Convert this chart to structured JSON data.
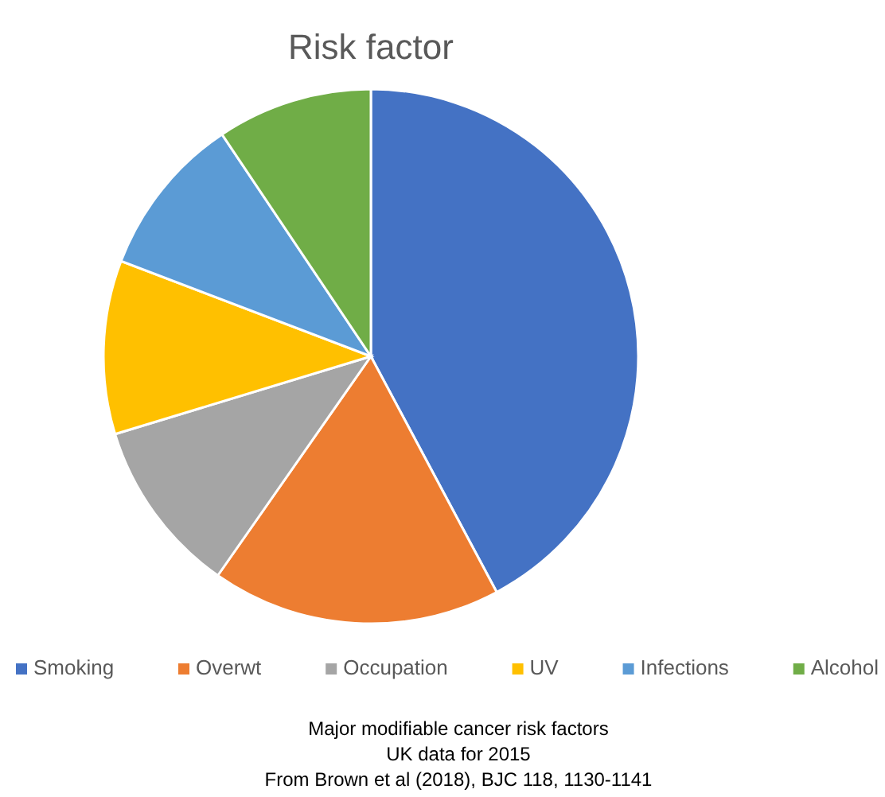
{
  "chart_data": {
    "type": "pie",
    "title": "Risk factor",
    "categories": [
      "Smoking",
      "Overwt",
      "Occupation",
      "UV",
      "Infections",
      "Alcohol"
    ],
    "values": [
      42.2,
      17.5,
      10.6,
      10.5,
      9.8,
      9.4
    ],
    "colors": [
      "#4472c4",
      "#ed7d31",
      "#a5a5a5",
      "#ffc000",
      "#5b9bd5",
      "#70ad47"
    ],
    "legend": "bottom",
    "annotations": [
      "Major modifiable cancer risk factors",
      "UK data for 2015",
      "From Brown et al (2018), BJC 118, 1130-1141"
    ]
  }
}
